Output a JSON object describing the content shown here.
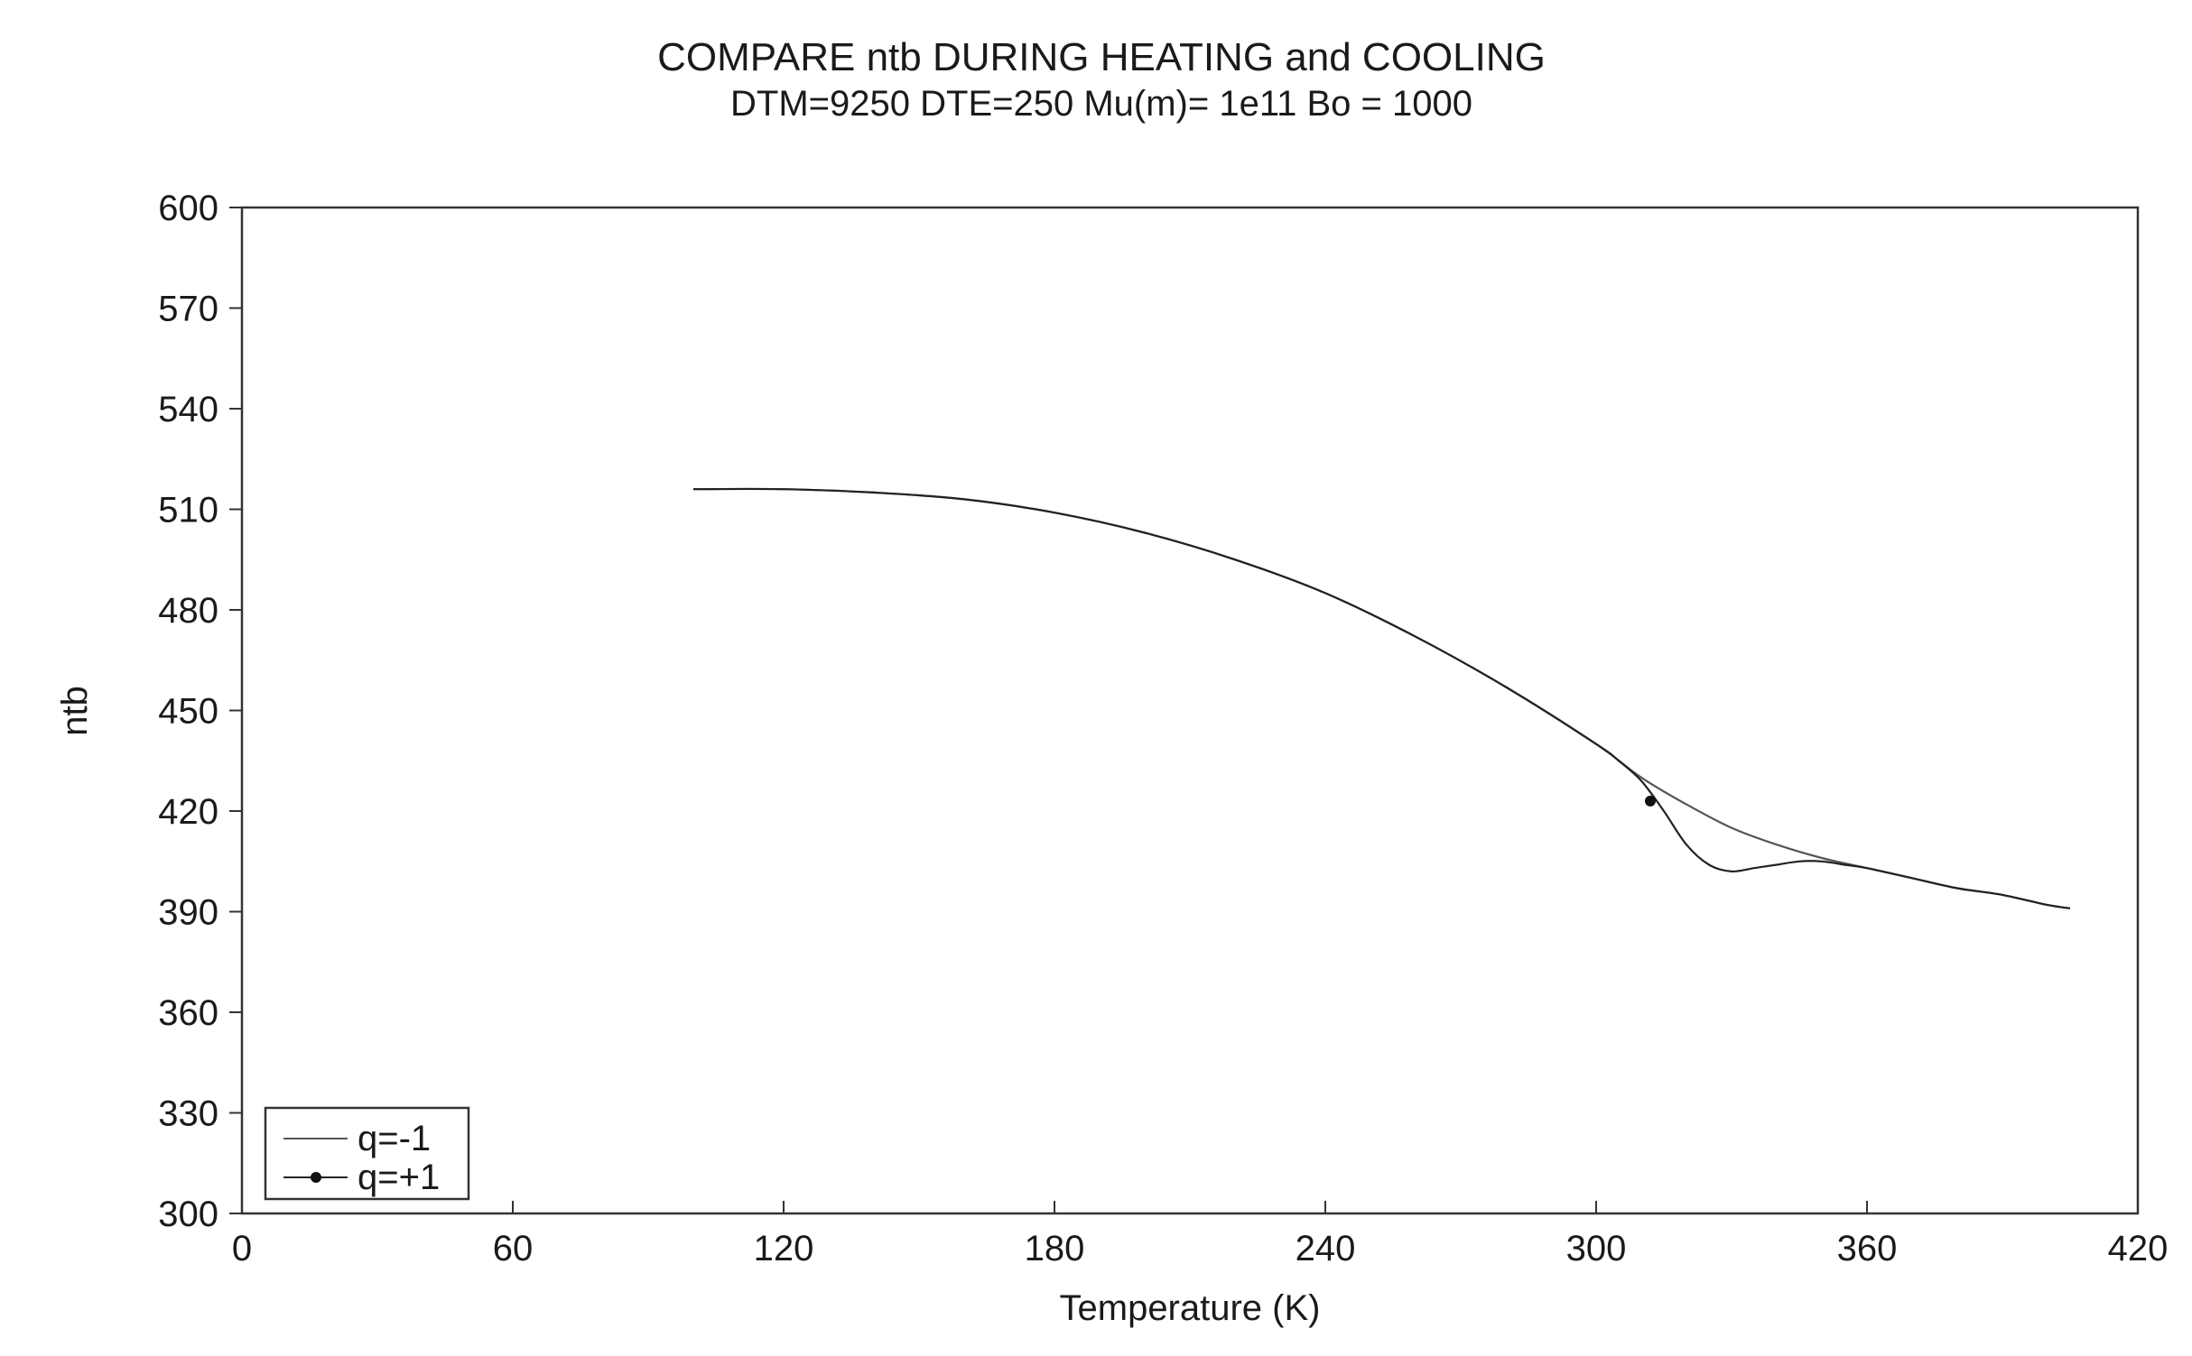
{
  "chart_data": {
    "type": "line",
    "title": "COMPARE ntb DURING HEATING and COOLING",
    "subtitle": "DTM=9250 DTE=250 Mu(m)= 1e11 Bo = 1000",
    "xlabel": "Temperature (K)",
    "ylabel": "ntb",
    "xlim": [
      0,
      420
    ],
    "ylim": [
      300,
      600
    ],
    "xticks": [
      "0",
      "60",
      "120",
      "180",
      "240",
      "300",
      "360",
      "420"
    ],
    "yticks": [
      "300",
      "330",
      "360",
      "390",
      "420",
      "450",
      "480",
      "510",
      "540",
      "570",
      "600"
    ],
    "grid": false,
    "legend_position": "bottom-left",
    "series": [
      {
        "name": "q=-1",
        "color": "#555555",
        "marker": "none",
        "x": [
          100,
          120,
          140,
          160,
          180,
          200,
          220,
          240,
          260,
          280,
          300,
          310,
          320,
          330,
          340,
          350,
          360,
          370,
          380,
          390,
          400,
          405
        ],
        "y": [
          516,
          516,
          515,
          513,
          509,
          503,
          495,
          485,
          472,
          457,
          440,
          430,
          422,
          415,
          410,
          406,
          403,
          400,
          397,
          395,
          392,
          391
        ]
      },
      {
        "name": "q=+1",
        "color": "#222222",
        "marker": "dot",
        "x": [
          100,
          120,
          140,
          160,
          180,
          200,
          220,
          240,
          260,
          280,
          300,
          305,
          310,
          315,
          320,
          325,
          330,
          335,
          340,
          345,
          350,
          355,
          360,
          370,
          380,
          390,
          400,
          405
        ],
        "y": [
          516,
          516,
          515,
          513,
          509,
          503,
          495,
          485,
          472,
          457,
          440,
          435,
          429,
          420,
          410,
          404,
          402,
          403,
          404,
          405,
          405,
          404,
          403,
          400,
          397,
          395,
          392,
          391
        ],
        "marker_points": [
          {
            "x": 312,
            "y": 423
          }
        ]
      }
    ]
  }
}
